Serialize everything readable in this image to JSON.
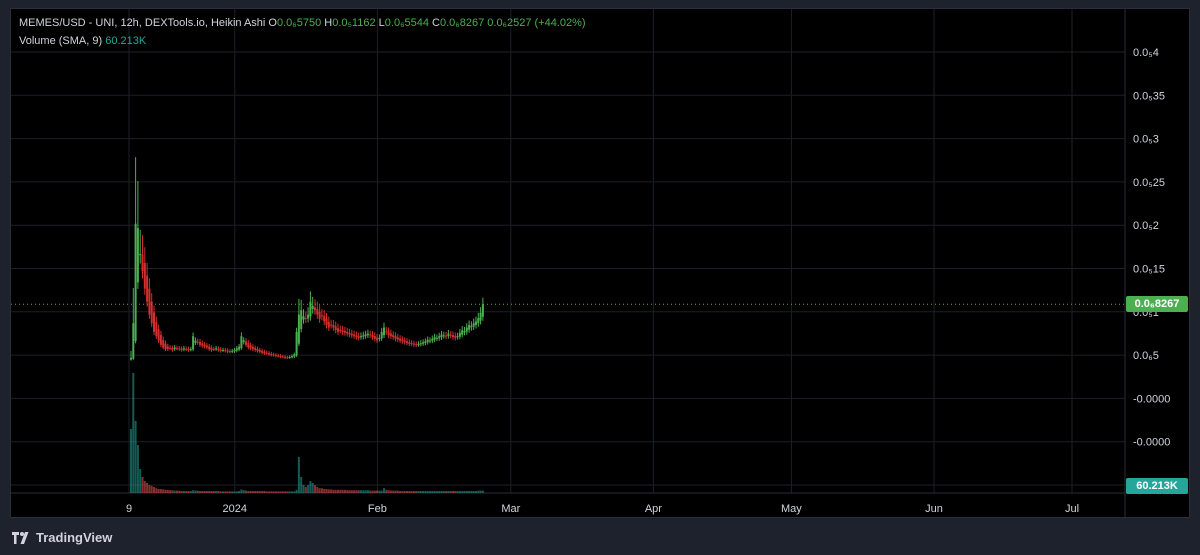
{
  "header": {
    "symbol": "MEMES/USD - UNI, 12h, DEXTools.io, Heikin Ashi",
    "open_label": "O",
    "open_value": "0.0₆5750",
    "high_label": "H",
    "high_value": "0.0₅1162",
    "low_label": "L",
    "low_value": "0.0₆5544",
    "close_label": "C",
    "close_value": "0.0₆8267",
    "change": "0.0₆2527 (+44.02%)",
    "volume_label": "Volume (SMA, 9)",
    "volume_value": "60.213K"
  },
  "price_tag": "0.0₆8267",
  "volume_tag": "60.213K",
  "brand": "TradingView",
  "colors": {
    "up": "#26a69a",
    "down": "#ef5350",
    "bull_candle": "#4caf50",
    "bear_candle": "#d32f2f",
    "grid": "#1c1f27",
    "last_price_line": "#4caf50"
  },
  "chart_data": {
    "type": "candlestick",
    "style": "Heikin Ashi",
    "timeframe": "12h",
    "y_tick_labels": [
      "0.0₅4",
      "0.0₅35",
      "0.0₅3",
      "0.0₅25",
      "0.0₅2",
      "0.0₅15",
      "0.0₅1",
      "0.0₆5",
      "-0.0000",
      "-0.0000",
      "-0.0000"
    ],
    "x_tick_labels": [
      "9",
      "2024",
      "Feb",
      "Mar",
      "Apr",
      "May",
      "Jun",
      "Jul"
    ],
    "x_ticks_days": [
      0,
      23,
      54,
      83,
      114,
      144,
      175,
      205
    ],
    "ylim": [
      -1.2e-06,
      4e-06
    ],
    "last_close": 8.2e-07,
    "grid": true,
    "candles_per_day": 2,
    "closes": [
      2e-07,
      6e-07,
      1.75e-06,
      1.7e-06,
      1.4e-06,
      1.2e-06,
      1e-06,
      8.5e-07,
      7e-07,
      6e-07,
      5e-07,
      4.5e-07,
      4e-07,
      3.5e-07,
      3.2e-07,
      3e-07,
      3e-07,
      3.1e-07,
      2.9e-07,
      3.2e-07,
      3.1e-07,
      3e-07,
      2.9e-07,
      3.1e-07,
      3e-07,
      2.9e-07,
      3e-07,
      4.5e-07,
      4e-07,
      3.8e-07,
      3.5e-07,
      3.4e-07,
      3.3e-07,
      3.2e-07,
      3e-07,
      2.9e-07,
      3e-07,
      3.1e-07,
      2.9e-07,
      2.8e-07,
      2.9e-07,
      2.8e-07,
      2.7e-07,
      2.7e-07,
      2.8e-07,
      2.9e-07,
      3.1e-07,
      3.3e-07,
      4.5e-07,
      4e-07,
      3.5e-07,
      3.2e-07,
      3.1e-07,
      3e-07,
      2.9e-07,
      2.8e-07,
      2.7e-07,
      2.6e-07,
      2.5e-07,
      2.5e-07,
      2.4e-07,
      2.3e-07,
      2.3e-07,
      2.2e-07,
      2.2e-07,
      2.1e-07,
      2.1e-07,
      2e-07,
      2e-07,
      2.1e-07,
      2.2e-07,
      2.4e-07,
      5e-07,
      7e-07,
      7.5e-07,
      6.8e-07,
      6.5e-07,
      7e-07,
      8.5e-07,
      8e-07,
      7.5e-07,
      7e-07,
      6.5e-07,
      6.8e-07,
      6.2e-07,
      5.8e-07,
      5.5e-07,
      5.8e-07,
      5.5e-07,
      5.2e-07,
      5e-07,
      5.2e-07,
      5e-07,
      4.9e-07,
      4.8e-07,
      4.7e-07,
      4.6e-07,
      4.5e-07,
      4.4e-07,
      4.3e-07,
      4.5e-07,
      4.6e-07,
      4.7e-07,
      4.8e-07,
      4.6e-07,
      4.4e-07,
      4.2e-07,
      4e-07,
      4.3e-07,
      5e-07,
      5.5e-07,
      5e-07,
      4.6e-07,
      4.5e-07,
      4.4e-07,
      4.2e-07,
      4.1e-07,
      4e-07,
      3.9e-07,
      3.8e-07,
      3.7e-07,
      3.6e-07,
      3.6e-07,
      3.5e-07,
      3.5e-07,
      3.6e-07,
      3.7e-07,
      3.8e-07,
      3.9e-07,
      4.1e-07,
      4e-07,
      4.2e-07,
      4.4e-07,
      4.3e-07,
      4.5e-07,
      4.7e-07,
      4.6e-07,
      4.5e-07,
      4.8e-07,
      4.6e-07,
      4.4e-07,
      4.3e-07,
      4.5e-07,
      4.9e-07,
      5.2e-07,
      5.1e-07,
      5.5e-07,
      5.8e-07,
      5.7e-07,
      6e-07,
      6.2e-07,
      6.6e-07,
      7.2e-07,
      8.2e-07
    ],
    "volumes_k": [
      160,
      300,
      180,
      120,
      60,
      40,
      30,
      25,
      20,
      18,
      15,
      12,
      10,
      10,
      9,
      8,
      8,
      7,
      7,
      6,
      6,
      6,
      5,
      5,
      5,
      5,
      5,
      7,
      6,
      6,
      5,
      5,
      5,
      5,
      5,
      5,
      5,
      5,
      5,
      4,
      4,
      4,
      4,
      4,
      4,
      4,
      4,
      5,
      9,
      7,
      6,
      5,
      5,
      5,
      5,
      5,
      5,
      5,
      5,
      4,
      4,
      4,
      4,
      4,
      4,
      4,
      4,
      4,
      4,
      4,
      4,
      4,
      8,
      90,
      40,
      20,
      15,
      20,
      30,
      25,
      20,
      15,
      12,
      12,
      10,
      10,
      9,
      9,
      8,
      8,
      8,
      8,
      8,
      8,
      7,
      7,
      7,
      7,
      7,
      7,
      7,
      7,
      7,
      7,
      6,
      6,
      6,
      6,
      6,
      6,
      12,
      8,
      7,
      6,
      6,
      6,
      6,
      5,
      5,
      5,
      5,
      5,
      5,
      5,
      5,
      5,
      5,
      5,
      5,
      5,
      5,
      5,
      5,
      5,
      5,
      5,
      5,
      5,
      5,
      5,
      5,
      5,
      5,
      5,
      5,
      5,
      5,
      5,
      5,
      5,
      5,
      6,
      6,
      6,
      6,
      6,
      6,
      7,
      12
    ]
  }
}
